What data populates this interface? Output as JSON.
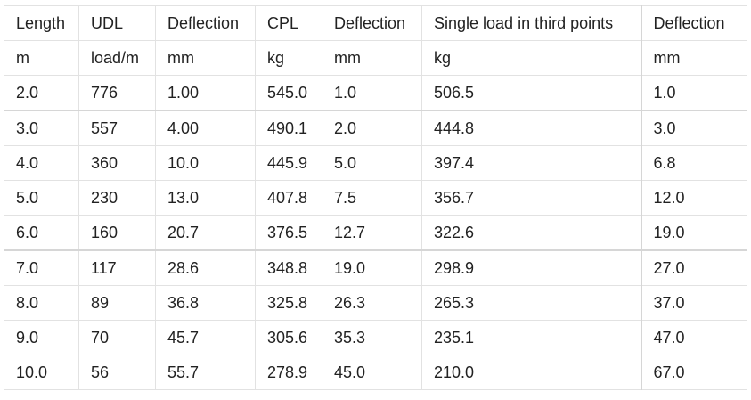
{
  "table": {
    "headers": [
      "Length",
      "UDL",
      "Deflection",
      "CPL",
      "Deflection",
      "Single load in third points",
      "Deflection"
    ],
    "units": [
      "m",
      "load/m",
      "mm",
      "kg",
      "mm",
      "kg",
      "mm"
    ],
    "rows": [
      [
        "2.0",
        "776",
        "1.00",
        "545.0",
        "1.0",
        "506.5",
        "1.0"
      ],
      [
        "3.0",
        "557",
        "4.00",
        "490.1",
        "2.0",
        "444.8",
        "3.0"
      ],
      [
        "4.0",
        "360",
        "10.0",
        "445.9",
        "5.0",
        "397.4",
        "6.8"
      ],
      [
        "5.0",
        "230",
        "13.0",
        "407.8",
        "7.5",
        "356.7",
        "12.0"
      ],
      [
        "6.0",
        "160",
        "20.7",
        "376.5",
        "12.7",
        "322.6",
        "19.0"
      ],
      [
        "7.0",
        "117",
        "28.6",
        "348.8",
        "19.0",
        "298.9",
        "27.0"
      ],
      [
        "8.0",
        "89",
        "36.8",
        "325.8",
        "26.3",
        "265.3",
        "37.0"
      ],
      [
        "9.0",
        "70",
        "45.7",
        "305.6",
        "35.3",
        "235.1",
        "47.0"
      ],
      [
        "10.0",
        "56",
        "55.7",
        "278.9",
        "45.0",
        "210.0",
        "67.0"
      ]
    ]
  },
  "colors": {
    "text": "#222222",
    "grid": "#e2e2e2",
    "grid_strong": "#d6d6d6",
    "background": "#ffffff"
  }
}
